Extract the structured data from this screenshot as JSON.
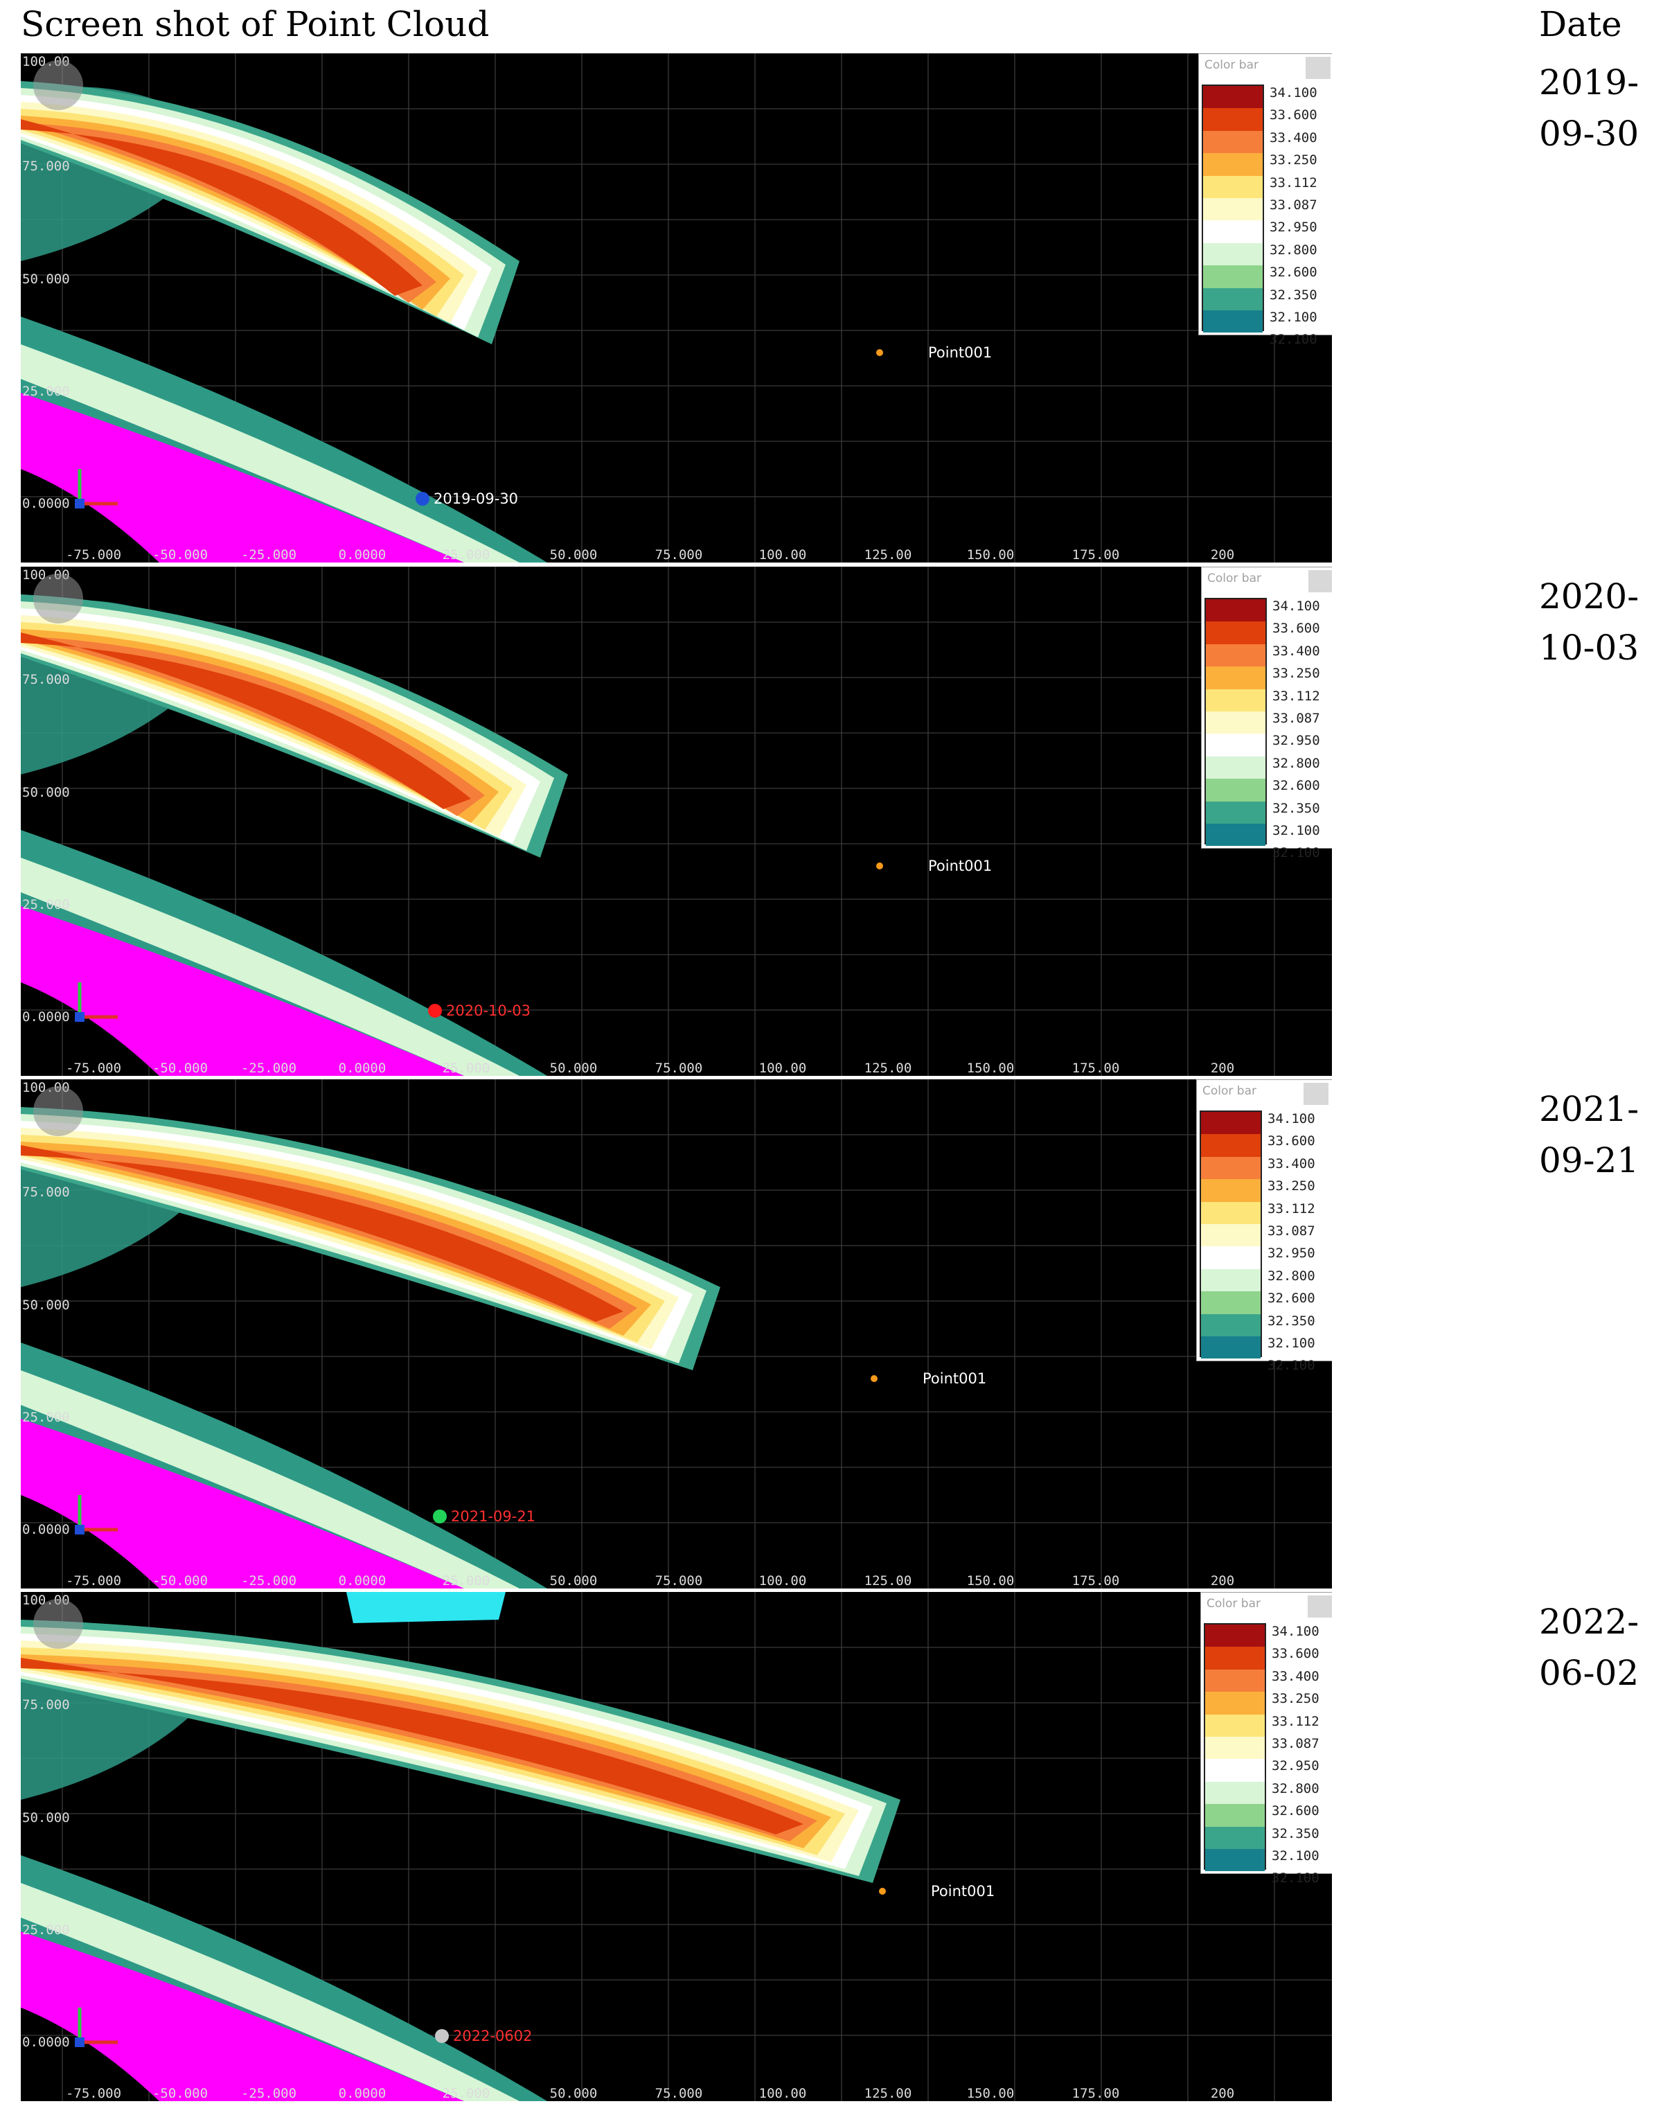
{
  "page_title": "Screen shot of Point Cloud",
  "date_header": "Date",
  "colorbar": {
    "title": "Color bar",
    "labels": [
      "34.100",
      "33.600",
      "33.400",
      "33.250",
      "33.112",
      "33.087",
      "32.950",
      "32.800",
      "32.600",
      "32.350",
      "32.100",
      "32.100"
    ],
    "colors": [
      "#a50f0f",
      "#e0400c",
      "#f57e3a",
      "#fbb03b",
      "#fde57a",
      "#fdfac8",
      "#ffffff",
      "#d8f5d6",
      "#8fd48c",
      "#3aa58a",
      "#17808d",
      "#184f9c"
    ]
  },
  "x_ticks": [
    "-75.000",
    "-50.000",
    "-25.000",
    "0.0000",
    "25.000",
    "50.000",
    "75.000",
    "100.00",
    "125.00",
    "150.00",
    "175.00",
    "200"
  ],
  "y_ticks": [
    "100.00",
    "75.000",
    "50.000",
    "25.000",
    "0.0000"
  ],
  "point_label": "Point001",
  "panels": [
    {
      "date_tag": "2019-09-30",
      "date_line1": "2019-",
      "date_line2": "09-30",
      "marker_color": "#1f4fd8",
      "tag_color": "#ffffff"
    },
    {
      "date_tag": "2020-10-03",
      "date_line1": "2020-",
      "date_line2": "10-03",
      "marker_color": "#ff1a1a",
      "tag_color": "#ff3030"
    },
    {
      "date_tag": "2021-09-21",
      "date_line1": "2021-",
      "date_line2": "09-21",
      "marker_color": "#22d35a",
      "tag_color": "#ff3030"
    },
    {
      "date_tag": "2022-0602",
      "date_line1": "2022-",
      "date_line2": "06-02",
      "marker_color": "#c8c8c8",
      "tag_color": "#ff3030"
    }
  ],
  "palette": {
    "magenta": "#ff00ff",
    "teal": "#2e9a86",
    "cyan": "#2ee6f0",
    "orange_marker": "#f59a1b"
  }
}
